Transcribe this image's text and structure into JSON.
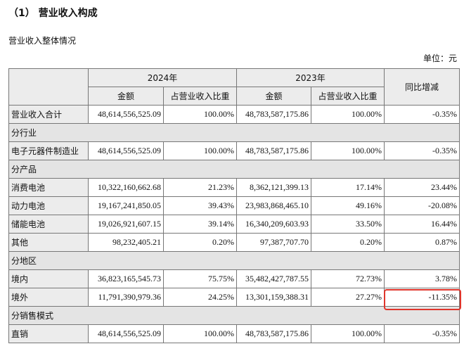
{
  "heading": "（1） 营业收入构成",
  "subtitle": "营业收入整体情况",
  "unit": "单位：元",
  "table": {
    "header": {
      "y2024": "2024年",
      "y2023": "2023年",
      "change": "同比增减",
      "amount_2024": "金额",
      "share_2024": "占营业收入比重",
      "amount_2023": "金额",
      "share_2023": "占营业收入比重"
    },
    "rows": [
      {
        "label": "营业收入合计",
        "cells": [
          "48,614,556,525.09",
          "100.00%",
          "48,783,587,175.86",
          "100.00%",
          "-0.35%"
        ]
      },
      {
        "section": "分行业"
      },
      {
        "label": "电子元器件制造业",
        "cells": [
          "48,614,556,525.09",
          "100.00%",
          "48,783,587,175.86",
          "100.00%",
          "-0.35%"
        ]
      },
      {
        "section": "分产品"
      },
      {
        "label": "消费电池",
        "cells": [
          "10,322,160,662.68",
          "21.23%",
          "8,362,121,399.13",
          "17.14%",
          "23.44%"
        ]
      },
      {
        "label": "动力电池",
        "cells": [
          "19,167,241,850.05",
          "39.43%",
          "23,983,868,465.10",
          "49.16%",
          "-20.08%"
        ]
      },
      {
        "label": "储能电池",
        "cells": [
          "19,026,921,607.15",
          "39.14%",
          "16,340,209,603.93",
          "33.50%",
          "16.44%"
        ]
      },
      {
        "label": "其他",
        "cells": [
          "98,232,405.21",
          "0.20%",
          "97,387,707.70",
          "0.20%",
          "0.87%"
        ]
      },
      {
        "section": "分地区"
      },
      {
        "label": "境内",
        "cells": [
          "36,823,165,545.73",
          "75.75%",
          "35,482,427,787.55",
          "72.73%",
          "3.78%"
        ]
      },
      {
        "label": "境外",
        "cells": [
          "11,791,390,979.36",
          "24.25%",
          "13,301,159,388.31",
          "27.27%",
          "-11.35%"
        ]
      },
      {
        "section": "分销售模式"
      },
      {
        "label": "直销",
        "cells": [
          "48,614,556,525.09",
          "100.00%",
          "48,783,587,175.86",
          "100.00%",
          "-0.35%"
        ]
      }
    ]
  }
}
